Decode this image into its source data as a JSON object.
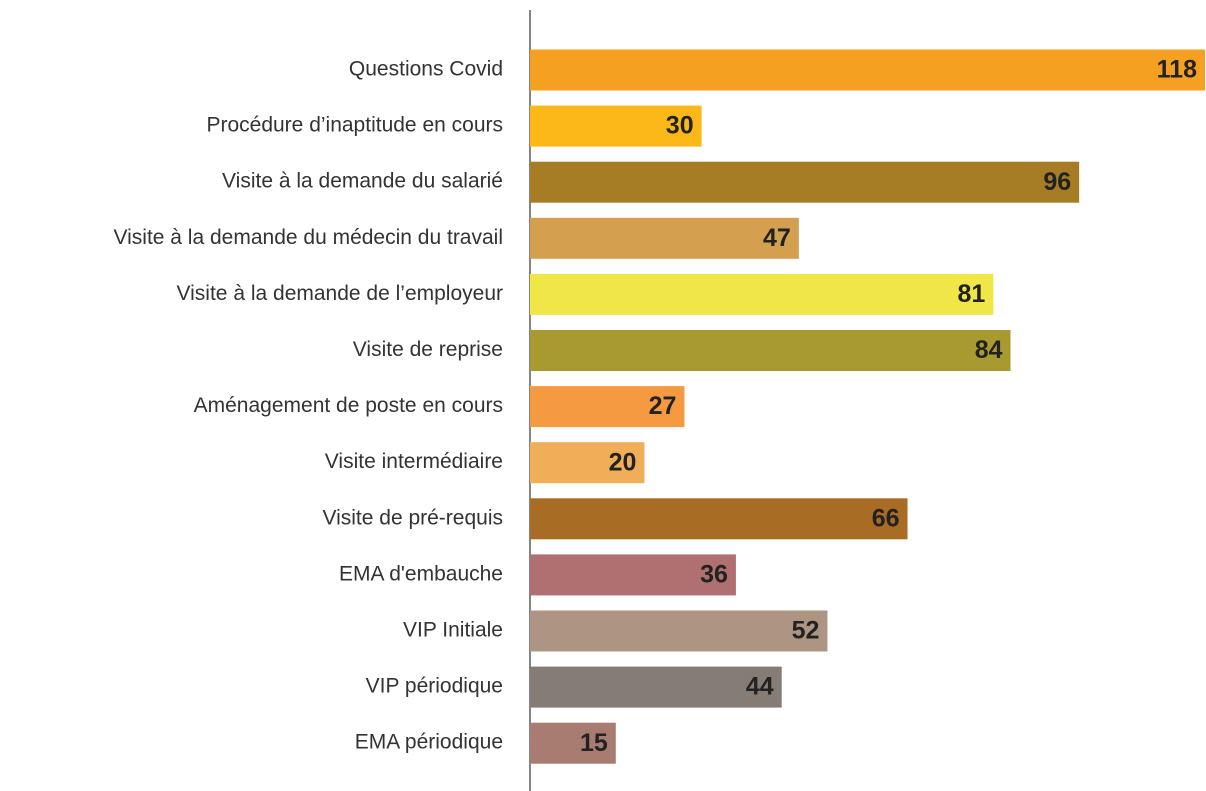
{
  "chart_data": {
    "type": "barh",
    "categories": [
      "Questions Covid",
      "Procédure d’inaptitude en cours",
      "Visite à la demande du salarié",
      "Visite à la demande du médecin du travail",
      "Visite à la demande de l’employeur",
      "Visite de reprise",
      "Aménagement de poste en cours",
      "Visite intermédiaire",
      "Visite de pré-requis",
      "EMA d'embauche",
      "VIP Initiale",
      "VIP périodique",
      "EMA périodique"
    ],
    "values": [
      118,
      30,
      96,
      47,
      81,
      84,
      27,
      20,
      66,
      36,
      52,
      44,
      15
    ],
    "colors": [
      "#f5a020",
      "#fbb818",
      "#a67c24",
      "#d4a050",
      "#f0e648",
      "#a89a30",
      "#f59a40",
      "#f0ae58",
      "#a86c24",
      "#b07072",
      "#ae9482",
      "#857c76",
      "#a87c70"
    ],
    "xlim": [
      0,
      118
    ]
  }
}
